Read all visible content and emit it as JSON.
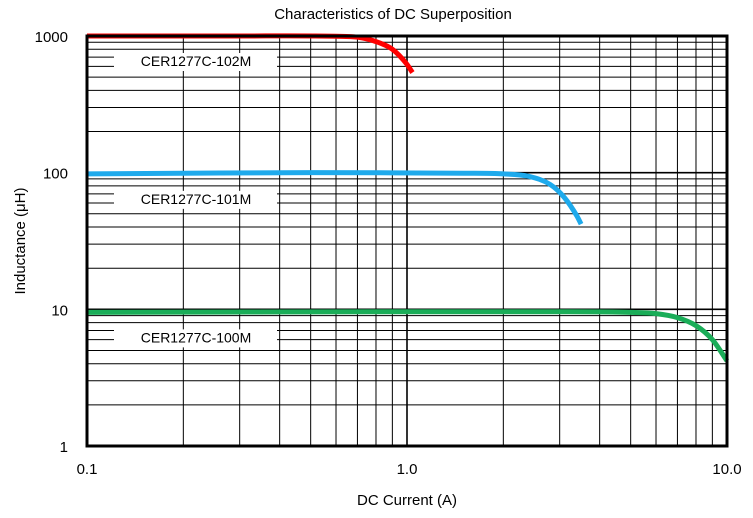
{
  "chart_data": {
    "type": "line",
    "title": "Characteristics of DC Superposition",
    "xlabel": "DC Current (A)",
    "ylabel": "Inductance (μH)",
    "xscale": "log",
    "yscale": "log",
    "xlim": [
      0.1,
      10.0
    ],
    "ylim": [
      1,
      1000
    ],
    "xticks": [
      {
        "value": 0.1,
        "label": "0.1"
      },
      {
        "value": 1.0,
        "label": "1.0"
      },
      {
        "value": 10.0,
        "label": "10.0"
      }
    ],
    "yticks": [
      {
        "value": 1,
        "label": "1"
      },
      {
        "value": 10,
        "label": "10"
      },
      {
        "value": 100,
        "label": "100"
      },
      {
        "value": 1000,
        "label": "1000"
      }
    ],
    "grid": true,
    "legend": "none",
    "series": [
      {
        "name": "CER1277C-102M",
        "color": "#ff0000",
        "x": [
          0.1,
          0.3,
          0.6,
          0.7,
          0.8,
          0.9,
          1.0,
          1.04
        ],
        "y": [
          1000,
          1000,
          995,
          980,
          910,
          800,
          620,
          540
        ]
      },
      {
        "name": "CER1277C-101M",
        "color": "#1eaaec",
        "x": [
          0.1,
          0.5,
          1.5,
          2.0,
          2.4,
          2.8,
          3.1,
          3.4,
          3.5
        ],
        "y": [
          98,
          100,
          99,
          98,
          94,
          82,
          66,
          48,
          42
        ]
      },
      {
        "name": "CER1277C-100M",
        "color": "#1aad58",
        "x": [
          0.1,
          1.0,
          3.0,
          5.0,
          6.0,
          7.0,
          8.0,
          9.0,
          10.0
        ],
        "y": [
          9.5,
          9.6,
          9.6,
          9.5,
          9.3,
          8.7,
          7.6,
          6.0,
          4.2
        ]
      }
    ]
  }
}
